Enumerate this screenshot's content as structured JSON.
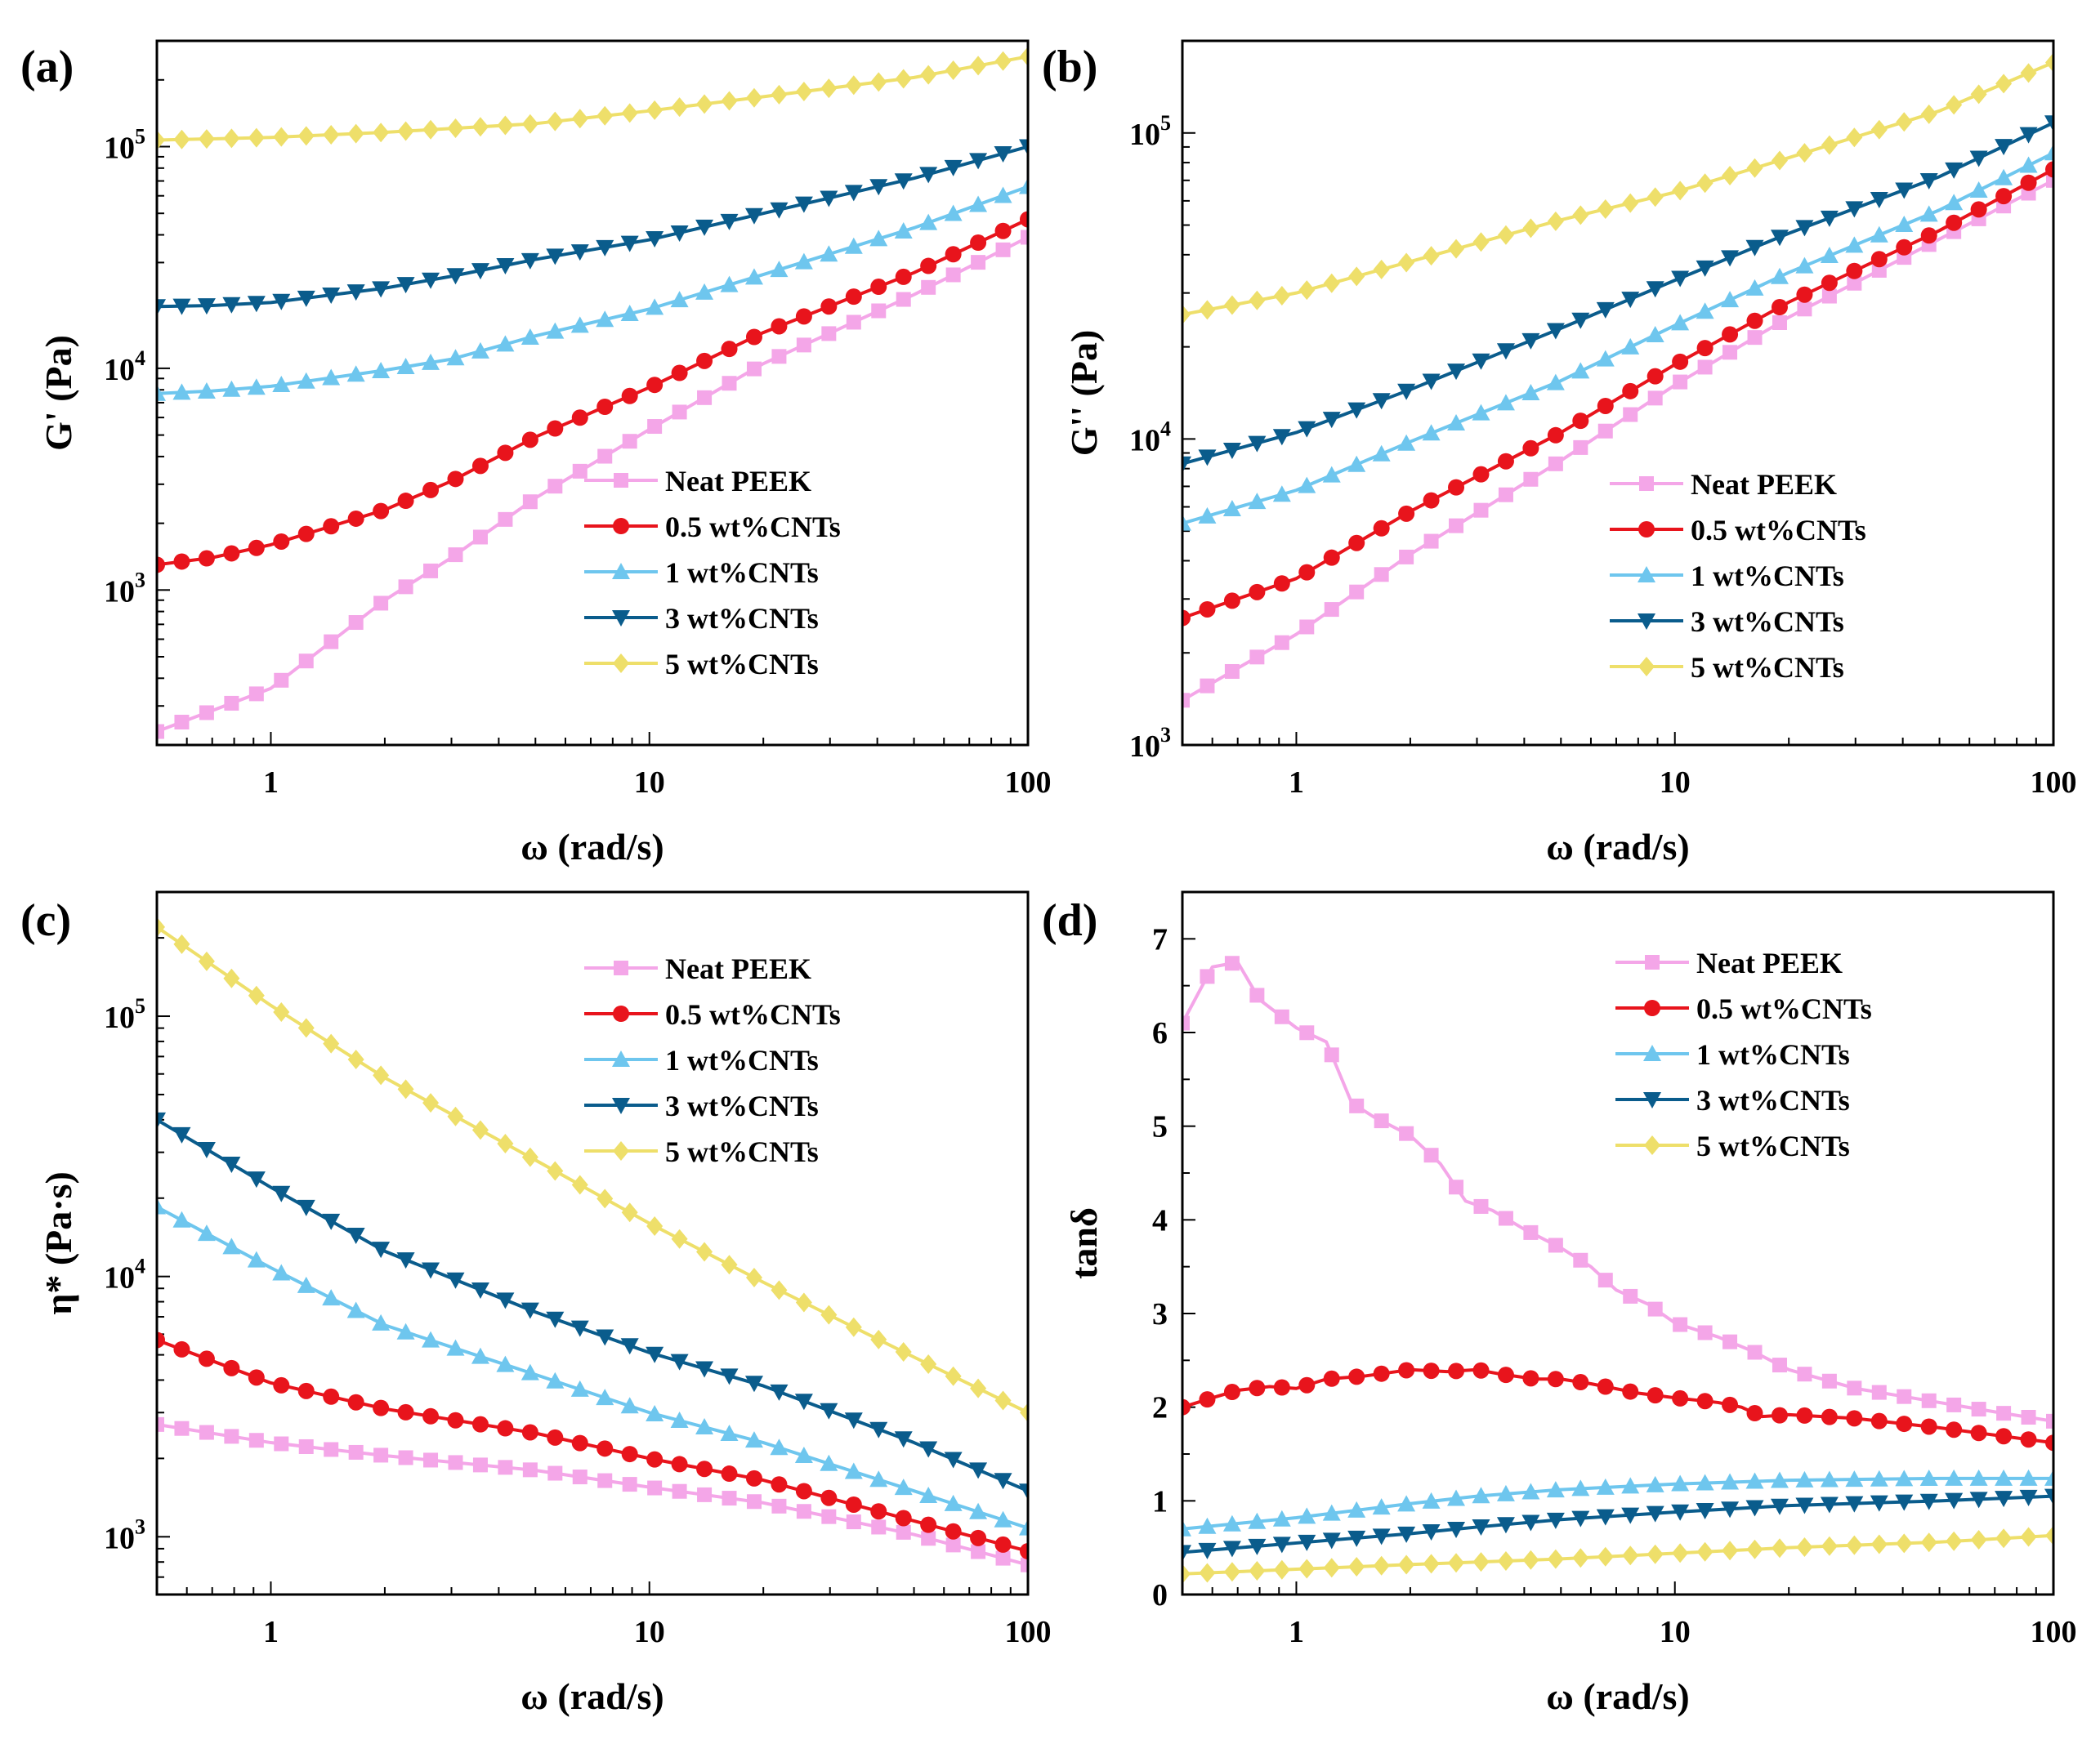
{
  "chart_data": [
    {
      "panel": "(a)",
      "type": "line",
      "xscale": "log",
      "yscale": "log",
      "xlabel": "ω (rad/s)",
      "ylabel": "G' (Pa)",
      "xlim": [
        0.5,
        100
      ],
      "ylim": [
        200,
        300000
      ],
      "xticks": [
        {
          "v": 1,
          "label": "1"
        },
        {
          "v": 10,
          "label": "10"
        },
        {
          "v": 100,
          "label": "100"
        }
      ],
      "yticks": [
        {
          "v": 1000,
          "base": "10",
          "exp": "3"
        },
        {
          "v": 10000,
          "base": "10",
          "exp": "4"
        },
        {
          "v": 100000,
          "base": "10",
          "exp": "5"
        }
      ],
      "legend_position": "center-right",
      "series": [
        {
          "name": "Neat PEEK",
          "points": [
            [
              0.5,
              230
            ],
            [
              1,
              360
            ],
            [
              2,
              900
            ],
            [
              3,
              1400
            ],
            [
              5,
              2600
            ],
            [
              10,
              5300
            ],
            [
              20,
              10500
            ],
            [
              50,
              21500
            ],
            [
              100,
              39000
            ]
          ]
        },
        {
          "name": "0.5 wt%CNTs",
          "points": [
            [
              0.5,
              1300
            ],
            [
              0.7,
              1400
            ],
            [
              1,
              1600
            ],
            [
              2,
              2300
            ],
            [
              3,
              3100
            ],
            [
              5,
              4900
            ],
            [
              10,
              8200
            ],
            [
              20,
              14500
            ],
            [
              50,
              27000
            ],
            [
              100,
              47000
            ]
          ]
        },
        {
          "name": "1 wt%CNTs",
          "points": [
            [
              0.5,
              7700
            ],
            [
              0.7,
              7900
            ],
            [
              1,
              8300
            ],
            [
              2,
              9800
            ],
            [
              3,
              11000
            ],
            [
              5,
              14000
            ],
            [
              10,
              18500
            ],
            [
              20,
              26500
            ],
            [
              50,
              43000
            ],
            [
              100,
              66000
            ]
          ]
        },
        {
          "name": "3 wt%CNTs",
          "points": [
            [
              0.5,
              19000
            ],
            [
              0.7,
              19200
            ],
            [
              1,
              19800
            ],
            [
              2,
              23000
            ],
            [
              3,
              26000
            ],
            [
              5,
              31000
            ],
            [
              10,
              38000
            ],
            [
              20,
              50000
            ],
            [
              50,
              72000
            ],
            [
              100,
              100000
            ]
          ]
        },
        {
          "name": "5 wt%CNTs",
          "points": [
            [
              0.5,
              107000
            ],
            [
              1,
              110000
            ],
            [
              2,
              116000
            ],
            [
              5,
              127000
            ],
            [
              10,
              145000
            ],
            [
              20,
              168000
            ],
            [
              50,
              205000
            ],
            [
              100,
              255000
            ]
          ]
        }
      ]
    },
    {
      "panel": "(b)",
      "type": "line",
      "xscale": "log",
      "yscale": "log",
      "xlabel": "ω (rad/s)",
      "ylabel": "G'' (Pa)",
      "xlim": [
        0.5,
        100
      ],
      "ylim": [
        1000,
        200000
      ],
      "xticks": [
        {
          "v": 1,
          "label": "1"
        },
        {
          "v": 10,
          "label": "10"
        },
        {
          "v": 100,
          "label": "100"
        }
      ],
      "yticks": [
        {
          "v": 1000,
          "base": "10",
          "exp": "3"
        },
        {
          "v": 10000,
          "base": "10",
          "exp": "4"
        },
        {
          "v": 100000,
          "base": "10",
          "exp": "5"
        }
      ],
      "legend_position": "center-right",
      "series": [
        {
          "name": "Neat PEEK",
          "points": [
            [
              0.5,
              1400
            ],
            [
              1,
              2300
            ],
            [
              2,
              4200
            ],
            [
              5,
              8500
            ],
            [
              10,
              15000
            ],
            [
              20,
              25000
            ],
            [
              50,
              45000
            ],
            [
              100,
              70000
            ]
          ]
        },
        {
          "name": "0.5 wt%CNTs",
          "points": [
            [
              0.5,
              2600
            ],
            [
              1,
              3500
            ],
            [
              2,
              5800
            ],
            [
              5,
              10500
            ],
            [
              10,
              17500
            ],
            [
              20,
              28000
            ],
            [
              50,
              48000
            ],
            [
              100,
              76000
            ]
          ]
        },
        {
          "name": "1 wt%CNTs",
          "points": [
            [
              0.5,
              5300
            ],
            [
              1,
              6800
            ],
            [
              2,
              9800
            ],
            [
              5,
              15500
            ],
            [
              10,
              23500
            ],
            [
              20,
              35000
            ],
            [
              50,
              56000
            ],
            [
              100,
              86000
            ]
          ]
        },
        {
          "name": "3 wt%CNTs",
          "points": [
            [
              0.5,
              8300
            ],
            [
              1,
              10500
            ],
            [
              2,
              14500
            ],
            [
              5,
              23000
            ],
            [
              10,
              33000
            ],
            [
              20,
              47000
            ],
            [
              50,
              72000
            ],
            [
              100,
              108000
            ]
          ]
        },
        {
          "name": "5 wt%CNTs",
          "points": [
            [
              0.5,
              25500
            ],
            [
              1,
              30000
            ],
            [
              2,
              38000
            ],
            [
              5,
              52000
            ],
            [
              10,
              64000
            ],
            [
              20,
              83000
            ],
            [
              50,
              118000
            ],
            [
              100,
              170000
            ]
          ]
        }
      ]
    },
    {
      "panel": "(c)",
      "type": "line",
      "xscale": "log",
      "yscale": "log",
      "xlabel": "ω (rad/s)",
      "ylabel": "η* (Pa·s)",
      "xlim": [
        0.5,
        100
      ],
      "ylim": [
        600,
        300000
      ],
      "xticks": [
        {
          "v": 1,
          "label": "1"
        },
        {
          "v": 10,
          "label": "10"
        },
        {
          "v": 100,
          "label": "100"
        }
      ],
      "yticks": [
        {
          "v": 1000,
          "base": "10",
          "exp": "3"
        },
        {
          "v": 10000,
          "base": "10",
          "exp": "4"
        },
        {
          "v": 100000,
          "base": "10",
          "exp": "5"
        }
      ],
      "legend_position": "top-right",
      "series": [
        {
          "name": "Neat PEEK",
          "points": [
            [
              0.5,
              2700
            ],
            [
              1,
              2300
            ],
            [
              2,
              2050
            ],
            [
              5,
              1800
            ],
            [
              10,
              1550
            ],
            [
              20,
              1350
            ],
            [
              50,
              1020
            ],
            [
              100,
              780
            ]
          ]
        },
        {
          "name": "0.5 wt%CNTs",
          "points": [
            [
              0.5,
              5700
            ],
            [
              1,
              3900
            ],
            [
              2,
              3100
            ],
            [
              5,
              2500
            ],
            [
              10,
              2000
            ],
            [
              20,
              1650
            ],
            [
              50,
              1150
            ],
            [
              100,
              880
            ]
          ]
        },
        {
          "name": "1 wt%CNTs",
          "points": [
            [
              0.5,
              18500
            ],
            [
              1,
              10800
            ],
            [
              2,
              6500
            ],
            [
              5,
              4200
            ],
            [
              10,
              3000
            ],
            [
              20,
              2300
            ],
            [
              50,
              1500
            ],
            [
              100,
              1080
            ]
          ]
        },
        {
          "name": "3 wt%CNTs",
          "points": [
            [
              0.5,
              40000
            ],
            [
              1,
              22000
            ],
            [
              2,
              12500
            ],
            [
              5,
              7300
            ],
            [
              10,
              5100
            ],
            [
              20,
              3800
            ],
            [
              50,
              2300
            ],
            [
              100,
              1500
            ]
          ]
        },
        {
          "name": "5 wt%CNTs",
          "points": [
            [
              0.5,
              220000
            ],
            [
              1,
              110000
            ],
            [
              2,
              58000
            ],
            [
              5,
              28000
            ],
            [
              10,
              16000
            ],
            [
              20,
              9500
            ],
            [
              50,
              4900
            ],
            [
              100,
              3000
            ]
          ]
        }
      ]
    },
    {
      "panel": "(d)",
      "type": "line",
      "xscale": "log",
      "yscale": "linear",
      "xlabel": "ω (rad/s)",
      "ylabel": "tanδ",
      "xlim": [
        0.5,
        100
      ],
      "ylim": [
        0,
        7.5
      ],
      "xticks": [
        {
          "v": 1,
          "label": "1"
        },
        {
          "v": 10,
          "label": "10"
        },
        {
          "v": 100,
          "label": "100"
        }
      ],
      "yticks": [
        {
          "v": 0,
          "label": "0"
        },
        {
          "v": 1,
          "label": "1"
        },
        {
          "v": 2,
          "label": "2"
        },
        {
          "v": 3,
          "label": "3"
        },
        {
          "v": 4,
          "label": "4"
        },
        {
          "v": 5,
          "label": "5"
        },
        {
          "v": 6,
          "label": "6"
        },
        {
          "v": 7,
          "label": "7"
        }
      ],
      "legend_position": "top-right",
      "series": [
        {
          "name": "Neat PEEK",
          "points": [
            [
              0.5,
              6.1
            ],
            [
              0.6,
              6.7
            ],
            [
              0.7,
              6.75
            ],
            [
              0.8,
              6.35
            ],
            [
              1,
              6.05
            ],
            [
              1.2,
              5.9
            ],
            [
              1.4,
              5.25
            ],
            [
              1.6,
              5.1
            ],
            [
              2,
              4.9
            ],
            [
              2.4,
              4.6
            ],
            [
              2.8,
              4.2
            ],
            [
              3.3,
              4.1
            ],
            [
              4,
              3.9
            ],
            [
              5,
              3.7
            ],
            [
              6,
              3.5
            ],
            [
              7,
              3.25
            ],
            [
              8.5,
              3.1
            ],
            [
              10,
              2.9
            ],
            [
              13,
              2.75
            ],
            [
              16,
              2.6
            ],
            [
              20,
              2.4
            ],
            [
              30,
              2.2
            ],
            [
              50,
              2.05
            ],
            [
              70,
              1.95
            ],
            [
              100,
              1.85
            ]
          ]
        },
        {
          "name": "0.5 wt%CNTs",
          "points": [
            [
              0.5,
              2.0
            ],
            [
              0.6,
              2.1
            ],
            [
              0.7,
              2.18
            ],
            [
              0.85,
              2.22
            ],
            [
              1,
              2.2
            ],
            [
              1.2,
              2.3
            ],
            [
              1.5,
              2.33
            ],
            [
              2,
              2.4
            ],
            [
              2.5,
              2.38
            ],
            [
              3,
              2.4
            ],
            [
              3.5,
              2.35
            ],
            [
              4.3,
              2.3
            ],
            [
              5,
              2.3
            ],
            [
              6,
              2.25
            ],
            [
              8,
              2.15
            ],
            [
              10,
              2.1
            ],
            [
              13,
              2.05
            ],
            [
              15,
              2.0
            ],
            [
              17,
              1.9
            ],
            [
              20,
              1.92
            ],
            [
              30,
              1.88
            ],
            [
              50,
              1.78
            ],
            [
              100,
              1.62
            ]
          ]
        },
        {
          "name": "1 wt%CNTs",
          "points": [
            [
              0.5,
              0.7
            ],
            [
              1,
              0.82
            ],
            [
              2,
              0.97
            ],
            [
              3,
              1.05
            ],
            [
              5,
              1.12
            ],
            [
              10,
              1.18
            ],
            [
              20,
              1.22
            ],
            [
              50,
              1.24
            ],
            [
              100,
              1.24
            ]
          ]
        },
        {
          "name": "3 wt%CNTs",
          "points": [
            [
              0.5,
              0.45
            ],
            [
              1,
              0.55
            ],
            [
              2,
              0.65
            ],
            [
              3,
              0.72
            ],
            [
              5,
              0.8
            ],
            [
              10,
              0.88
            ],
            [
              20,
              0.95
            ],
            [
              50,
              1.0
            ],
            [
              100,
              1.05
            ]
          ]
        },
        {
          "name": "5 wt%CNTs",
          "points": [
            [
              0.5,
              0.22
            ],
            [
              1,
              0.27
            ],
            [
              2,
              0.32
            ],
            [
              5,
              0.38
            ],
            [
              10,
              0.44
            ],
            [
              20,
              0.5
            ],
            [
              50,
              0.56
            ],
            [
              100,
              0.63
            ]
          ]
        }
      ]
    }
  ],
  "styles": {
    "Neat PEEK": {
      "color": "#F4A6E8",
      "marker": "square"
    },
    "0.5 wt%CNTs": {
      "color": "#E8141C",
      "marker": "circle"
    },
    "1 wt%CNTs": {
      "color": "#6EC6EE",
      "marker": "triangle-up"
    },
    "3 wt%CNTs": {
      "color": "#0A5C8C",
      "marker": "triangle-down"
    },
    "5 wt%CNTs": {
      "color": "#EEDF6A",
      "marker": "diamond"
    }
  }
}
